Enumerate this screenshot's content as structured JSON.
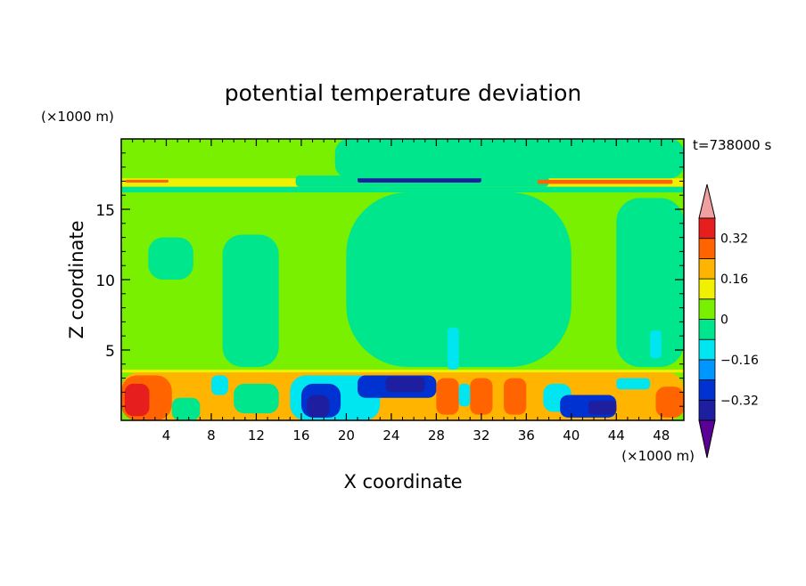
{
  "chart_data": {
    "type": "heatmap",
    "title": "potential temperature deviation",
    "xlabel": "X coordinate",
    "ylabel": "Z coordinate",
    "x_unit": "(×1000 m)",
    "y_unit": "(×1000 m)",
    "time_label": "t=738000 s",
    "xlim": [
      0,
      50
    ],
    "ylim": [
      0,
      20
    ],
    "x_ticks": [
      4,
      8,
      12,
      16,
      20,
      24,
      28,
      32,
      36,
      40,
      44,
      48
    ],
    "x_tick_labels": [
      "4",
      "8",
      "12",
      "16",
      "20",
      "24",
      "28",
      "32",
      "36",
      "40",
      "44",
      "48"
    ],
    "y_ticks": [
      5,
      10,
      15
    ],
    "y_tick_labels": [
      "5",
      "10",
      "15"
    ],
    "colorbar": {
      "levels": [
        -0.4,
        -0.32,
        -0.24,
        -0.16,
        -0.08,
        0,
        0.08,
        0.16,
        0.24,
        0.32,
        0.4
      ],
      "labels": [
        "0.32",
        "0.16",
        "0",
        "−0.16",
        "−0.32"
      ],
      "label_values": [
        0.32,
        0.16,
        0,
        -0.16,
        -0.32
      ],
      "colors": [
        "#5a0096",
        "#1e1ea0",
        "#0032d2",
        "#0096ff",
        "#00e6f0",
        "#00e68c",
        "#78f000",
        "#f0f000",
        "#ffb400",
        "#ff6400",
        "#e61e1e",
        "#f0a0a0"
      ]
    },
    "bands": [
      {
        "x0": 0,
        "x1": 50,
        "z0": 0,
        "z1": 20,
        "value": 0.04
      },
      {
        "x0": 0,
        "x1": 50,
        "z0": 16.6,
        "z1": 17.2,
        "value": 0.12
      },
      {
        "x0": 0,
        "x1": 50,
        "z0": 16.2,
        "z1": 16.6,
        "value": -0.06
      },
      {
        "x0": 0,
        "x1": 50,
        "z0": 3.4,
        "z1": 3.6,
        "value": 0.12
      }
    ],
    "regions": [
      {
        "x0": 15.5,
        "x1": 38,
        "z0": 16.6,
        "z1": 17.4,
        "value": -0.06
      },
      {
        "x0": 21,
        "x1": 32,
        "z0": 16.9,
        "z1": 17.3,
        "value": -0.4
      },
      {
        "x0": 0.4,
        "x1": 4.2,
        "z0": 16.9,
        "z1": 17.1,
        "value": 0.28
      },
      {
        "x0": 37,
        "x1": 49,
        "z0": 16.8,
        "z1": 17.1,
        "value": 0.28
      },
      {
        "x0": 19,
        "x1": 50,
        "z0": 17.2,
        "z1": 20,
        "value": -0.04
      },
      {
        "x0": 2.4,
        "x1": 6.4,
        "z0": 10,
        "z1": 13,
        "value": -0.04
      },
      {
        "x0": 9,
        "x1": 14,
        "z0": 3.8,
        "z1": 13.2,
        "value": -0.04
      },
      {
        "x0": 20,
        "x1": 40,
        "z0": 3.8,
        "z1": 16.2,
        "value": -0.04
      },
      {
        "x0": 44,
        "x1": 50,
        "z0": 3.8,
        "z1": 15.8,
        "value": -0.04
      },
      {
        "x0": 29,
        "x1": 30,
        "z0": 3.6,
        "z1": 6.6,
        "value": -0.12
      },
      {
        "x0": 47,
        "x1": 48,
        "z0": 4.4,
        "z1": 6.4,
        "value": -0.12
      },
      {
        "x0": 0,
        "x1": 50,
        "z0": 0,
        "z1": 3.4,
        "value": 0.2
      },
      {
        "x0": 0,
        "x1": 4.5,
        "z0": 0,
        "z1": 3.2,
        "value": 0.28
      },
      {
        "x0": 0.3,
        "x1": 2.5,
        "z0": 0.3,
        "z1": 2.6,
        "value": 0.36
      },
      {
        "x0": 4.5,
        "x1": 7,
        "z0": 0,
        "z1": 1.6,
        "value": -0.06
      },
      {
        "x0": 8,
        "x1": 9.5,
        "z0": 1.8,
        "z1": 3.2,
        "value": -0.12
      },
      {
        "x0": 10,
        "x1": 14,
        "z0": 0.5,
        "z1": 2.6,
        "value": -0.06
      },
      {
        "x0": 15,
        "x1": 23,
        "z0": 0,
        "z1": 3.2,
        "value": -0.12
      },
      {
        "x0": 16,
        "x1": 19.5,
        "z0": 0.2,
        "z1": 2.6,
        "value": -0.28
      },
      {
        "x0": 16.5,
        "x1": 18.5,
        "z0": 0.2,
        "z1": 1.8,
        "value": -0.36
      },
      {
        "x0": 21,
        "x1": 28,
        "z0": 1.6,
        "z1": 3.2,
        "value": -0.28
      },
      {
        "x0": 23.5,
        "x1": 27,
        "z0": 2.0,
        "z1": 3.1,
        "value": -0.36
      },
      {
        "x0": 28,
        "x1": 30,
        "z0": 0.4,
        "z1": 3.0,
        "value": 0.28
      },
      {
        "x0": 31,
        "x1": 33,
        "z0": 0.4,
        "z1": 3.0,
        "value": 0.28
      },
      {
        "x0": 34,
        "x1": 36,
        "z0": 0.4,
        "z1": 3.0,
        "value": 0.28
      },
      {
        "x0": 30,
        "x1": 31,
        "z0": 1.0,
        "z1": 2.6,
        "value": -0.12
      },
      {
        "x0": 37.5,
        "x1": 40,
        "z0": 0.6,
        "z1": 2.6,
        "value": -0.12
      },
      {
        "x0": 39,
        "x1": 44,
        "z0": 0.2,
        "z1": 1.8,
        "value": -0.28
      },
      {
        "x0": 41.5,
        "x1": 44,
        "z0": 0.4,
        "z1": 1.4,
        "value": -0.36
      },
      {
        "x0": 44,
        "x1": 47,
        "z0": 2.2,
        "z1": 3.0,
        "value": -0.12
      },
      {
        "x0": 47.5,
        "x1": 50,
        "z0": 0.2,
        "z1": 2.4,
        "value": 0.28
      }
    ]
  }
}
